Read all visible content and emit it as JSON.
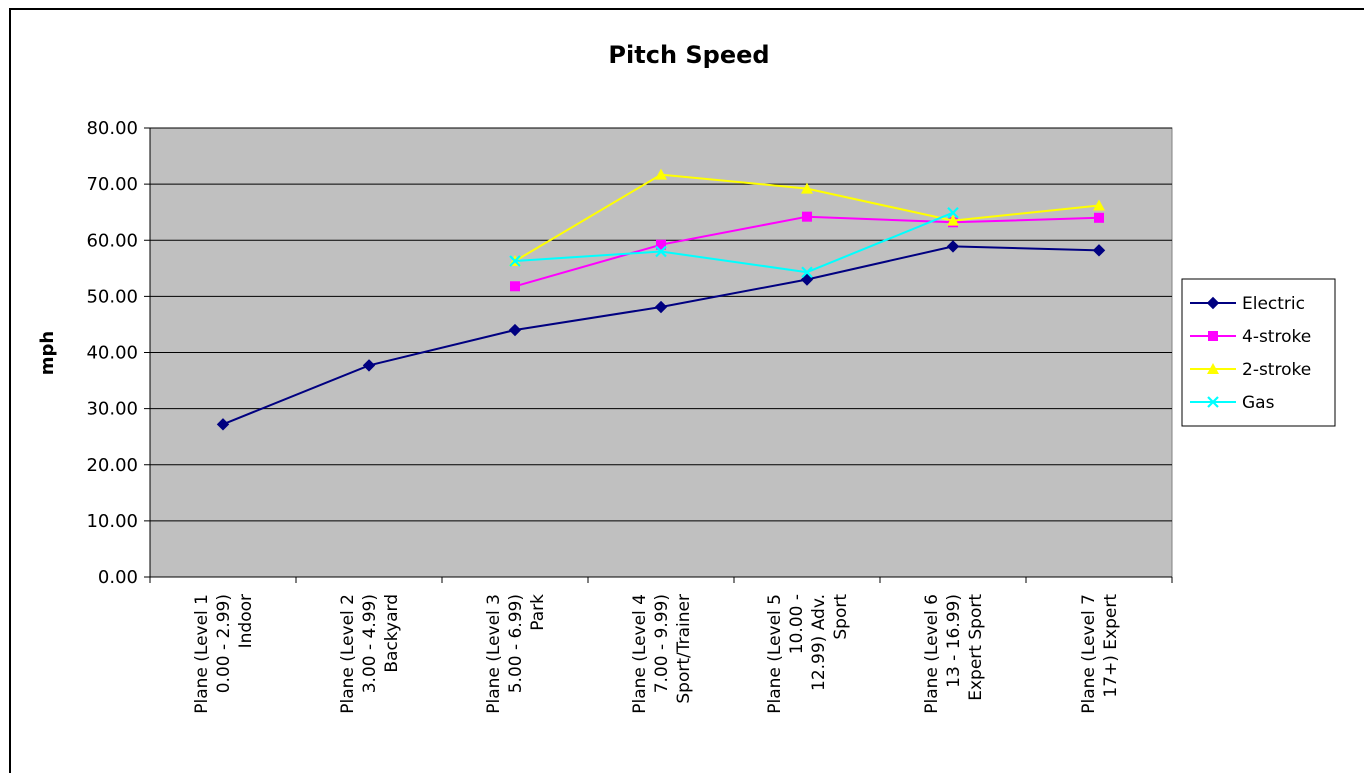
{
  "chart_data": {
    "type": "line",
    "title": "Pitch Speed",
    "ylabel": "mph",
    "xlabel": "",
    "ylim": [
      0,
      80
    ],
    "yticks": [
      0,
      10,
      20,
      30,
      40,
      50,
      60,
      70,
      80
    ],
    "ytick_labels": [
      "0.00",
      "10.00",
      "20.00",
      "30.00",
      "40.00",
      "50.00",
      "60.00",
      "70.00",
      "80.00"
    ],
    "grid": true,
    "legend_position": "right",
    "plot_background": "#c0c0c0",
    "categories": [
      [
        "Plane (Level 1",
        "0.00 - 2.99)",
        "Indoor"
      ],
      [
        "Plane (Level 2",
        "3.00 - 4.99)",
        "Backyard"
      ],
      [
        "Plane (Level 3",
        "5.00 - 6.99)",
        "Park"
      ],
      [
        "Plane (Level 4",
        "7.00 - 9.99)",
        "Sport/Trainer"
      ],
      [
        "Plane (Level 5",
        "10.00 -",
        "12.99) Adv.",
        "Sport"
      ],
      [
        "Plane (Level 6",
        "13 - 16.99)",
        "Expert Sport"
      ],
      [
        "Plane (Level 7",
        "17+) Expert"
      ]
    ],
    "series": [
      {
        "name": "Electric",
        "color": "#000080",
        "marker": "diamond",
        "values": [
          27.2,
          37.7,
          44.0,
          48.1,
          53.0,
          58.9,
          58.2
        ]
      },
      {
        "name": "4-stroke",
        "color": "#ff00ff",
        "marker": "square",
        "values": [
          null,
          null,
          51.8,
          59.2,
          64.2,
          63.2,
          64.0
        ]
      },
      {
        "name": "2-stroke",
        "color": "#ffff00",
        "marker": "triangle",
        "values": [
          null,
          null,
          56.3,
          71.7,
          69.2,
          63.5,
          66.2
        ]
      },
      {
        "name": "Gas",
        "color": "#00ffff",
        "marker": "cross",
        "values": [
          null,
          null,
          56.3,
          58.0,
          54.3,
          64.9,
          null
        ]
      }
    ]
  }
}
